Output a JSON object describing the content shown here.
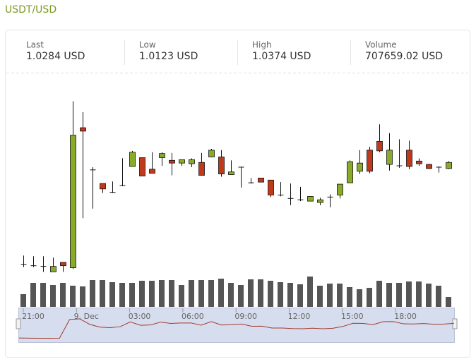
{
  "header": {
    "title": "USDT/USD",
    "stats": [
      {
        "label": "Last",
        "value": "1.0284 USD"
      },
      {
        "label": "Low",
        "value": "1.0123 USD"
      },
      {
        "label": "High",
        "value": "1.0374 USD"
      },
      {
        "label": "Volume",
        "value": "707659.02 USD"
      }
    ]
  },
  "chart_data": {
    "type": "candlestick",
    "open": [
      1.0134,
      1.0132,
      1.0131,
      1.0123,
      1.0137,
      1.0129,
      1.0335,
      1.0273,
      1.0253,
      1.024,
      1.025,
      1.0278,
      1.0291,
      1.0274,
      1.0291,
      1.0287,
      1.0283,
      1.0282,
      1.0284,
      1.0292,
      1.0292,
      1.0266,
      1.0277,
      1.0254,
      1.0261,
      1.0258,
      1.0236,
      1.0231,
      1.0229,
      1.0227,
      1.0225,
      1.0233,
      1.0236,
      1.0254,
      1.0271,
      1.0302,
      1.0315,
      1.0281,
      1.0279,
      1.0302,
      1.0286,
      1.0281,
      1.0277,
      1.0275
    ],
    "high": [
      1.0147,
      1.0146,
      1.0146,
      1.0144,
      1.0137,
      1.0374,
      1.0358,
      1.0277,
      1.0253,
      1.0256,
      1.029,
      1.0301,
      1.0291,
      1.0299,
      1.0299,
      1.0298,
      1.0288,
      1.029,
      1.0298,
      1.0304,
      1.0302,
      1.0287,
      1.0277,
      1.0261,
      1.0261,
      1.0258,
      1.0255,
      1.0253,
      1.0248,
      1.0234,
      1.0232,
      1.0237,
      1.0252,
      1.0287,
      1.0302,
      1.0307,
      1.034,
      1.0327,
      1.0318,
      1.0316,
      1.029,
      1.0282,
      1.0278,
      1.0286
    ],
    "low": [
      1.013,
      1.013,
      1.0123,
      1.0123,
      1.0123,
      1.0127,
      1.0202,
      1.0216,
      1.0239,
      1.0239,
      1.0249,
      1.0278,
      1.0264,
      1.0268,
      1.0279,
      1.0265,
      1.0279,
      1.0277,
      1.0265,
      1.0292,
      1.0263,
      1.0266,
      1.0247,
      1.0253,
      1.0255,
      1.0233,
      1.0234,
      1.0221,
      1.0227,
      1.0227,
      1.0221,
      1.0218,
      1.0231,
      1.0254,
      1.0267,
      1.0268,
      1.0299,
      1.0272,
      1.0276,
      1.0274,
      1.0279,
      1.0274,
      1.0269,
      1.0274
    ],
    "close": [
      1.0134,
      1.0132,
      1.0131,
      1.0131,
      1.0132,
      1.0324,
      1.033,
      1.0273,
      1.0245,
      1.024,
      1.025,
      1.0299,
      1.0264,
      1.0268,
      1.0297,
      1.0283,
      1.0288,
      1.0288,
      1.0265,
      1.0302,
      1.0267,
      1.027,
      1.0277,
      1.0254,
      1.0255,
      1.0236,
      1.0236,
      1.0231,
      1.0229,
      1.0234,
      1.0229,
      1.0233,
      1.0252,
      1.0285,
      1.0283,
      1.0271,
      1.0301,
      1.0302,
      1.0279,
      1.0278,
      1.0282,
      1.0275,
      1.0277,
      1.0284
    ],
    "volume": [
      18,
      34,
      34,
      31,
      34,
      30,
      29,
      38,
      38,
      35,
      34,
      34,
      37,
      37,
      38,
      38,
      31,
      38,
      38,
      38,
      40,
      34,
      31,
      39,
      39,
      37,
      35,
      34,
      32,
      43,
      30,
      33,
      33,
      28,
      25,
      27,
      37,
      34,
      34,
      36,
      36,
      33,
      30,
      14
    ],
    "ylim": [
      1.0113,
      1.0388
    ],
    "vlim": [
      0,
      45
    ],
    "up_color": "#8aaa2a",
    "down_color": "#c0391a",
    "volume_color": "#555555",
    "navigator": {
      "labels": [
        "21:00",
        "9. Dec",
        "03:00",
        "06:00",
        "09:00",
        "12:00",
        "15:00",
        "18:00"
      ],
      "line_color": "#a33a2a"
    }
  }
}
